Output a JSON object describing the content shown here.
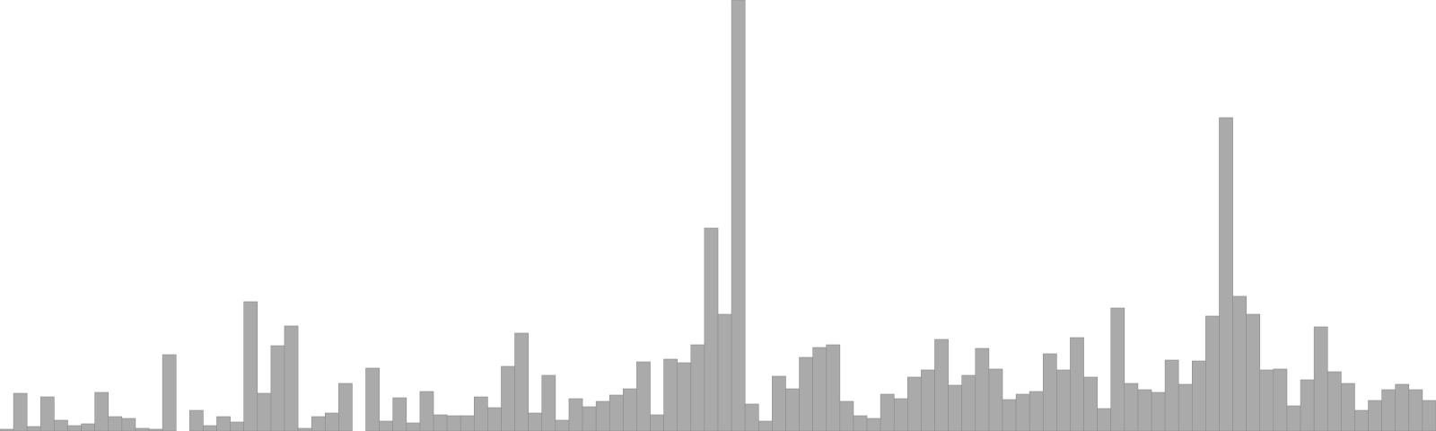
{
  "chart_data": {
    "type": "bar",
    "values": [
      2,
      42,
      5,
      38,
      12,
      6,
      8,
      43,
      16,
      14,
      3,
      2,
      85,
      0,
      23,
      6,
      16,
      10,
      144,
      42,
      95,
      117,
      3,
      16,
      20,
      53,
      0,
      70,
      11,
      37,
      9,
      44,
      18,
      17,
      17,
      38,
      26,
      72,
      109,
      20,
      62,
      12,
      36,
      27,
      33,
      40,
      47,
      77,
      18,
      80,
      76,
      96,
      226,
      130,
      480,
      30,
      11,
      61,
      47,
      82,
      93,
      96,
      33,
      17,
      14,
      41,
      36,
      60,
      68,
      102,
      51,
      62,
      92,
      69,
      35,
      41,
      44,
      86,
      68,
      104,
      60,
      25,
      137,
      53,
      46,
      43,
      79,
      52,
      78,
      128,
      349,
      150,
      130,
      68,
      69,
      28,
      57,
      116,
      66,
      53,
      23,
      34,
      46,
      52,
      46,
      34
    ],
    "ylim": [
      0,
      480
    ],
    "xlabel": "",
    "ylabel": "",
    "title": "",
    "grid": false,
    "legend": "none",
    "bar_color": "#aaaaaa",
    "edge_color": "#8c8c8c"
  }
}
